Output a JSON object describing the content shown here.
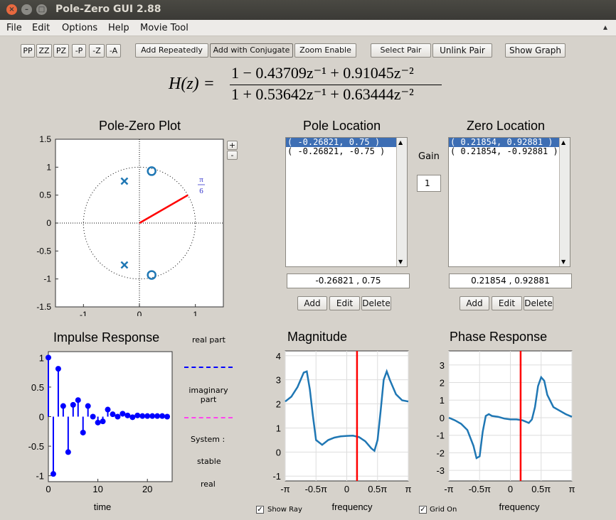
{
  "window": {
    "title": "Pole-Zero GUI 2.88",
    "close_glyph": "×",
    "minimize_glyph": "–",
    "maximize_glyph": "□"
  },
  "menu": [
    "File",
    "Edit",
    "Options",
    "Help",
    "Movie Tool"
  ],
  "toolbar": {
    "small_buttons": [
      "PP",
      "ZZ",
      "PZ",
      "-P",
      "-Z",
      "-A"
    ],
    "add_repeatedly": "Add Repeatedly",
    "add_with_conjugate": "Add with Conjugate",
    "zoom_enable": "Zoom Enable",
    "select_pair": "Select Pair",
    "unlink_pair": "Unlink Pair",
    "show_graph": "Show Graph"
  },
  "transfer_function": {
    "lhs": "H(z) =",
    "numerator": "1 − 0.43709z⁻¹ + 0.91045z⁻²",
    "denominator": "1 + 0.53642z⁻¹ + 0.63444z⁻²"
  },
  "pole_zero_plot": {
    "title": "Pole-Zero Plot",
    "zoom_in": "+",
    "zoom_out": "-",
    "x_ticks": [
      "-1",
      "0",
      "1"
    ],
    "y_ticks": [
      "1.5",
      "1",
      "0.5",
      "0",
      "-0.5",
      "-1",
      "-1.5"
    ],
    "ray_label_num": "π",
    "ray_label_den": "6"
  },
  "pole_location": {
    "title": "Pole Location",
    "items": [
      "( -0.26821, 0.75 )",
      "( -0.26821, -0.75 )"
    ],
    "selected_index": 0,
    "field_value": "-0.26821 , 0.75",
    "add": "Add",
    "edit": "Edit",
    "delete": "Delete"
  },
  "gain": {
    "label": "Gain",
    "value": "1"
  },
  "zero_location": {
    "title": "Zero Location",
    "items": [
      "( 0.21854, 0.92881 )",
      "( 0.21854, -0.92881 )"
    ],
    "selected_index": 0,
    "field_value": "0.21854 , 0.92881",
    "add": "Add",
    "edit": "Edit",
    "delete": "Delete"
  },
  "impulse": {
    "title": "Impulse Response",
    "xlabel": "time",
    "x_ticks": [
      "0",
      "10",
      "20"
    ],
    "y_ticks": [
      "1",
      "0.5",
      "0",
      "-0.5",
      "-1"
    ],
    "legend_real": "real part",
    "legend_imag": "imaginary part",
    "system_label": "System :",
    "stable": "stable",
    "real": "real"
  },
  "magnitude": {
    "title": "Magnitude",
    "xlabel": "frequency",
    "x_ticks": [
      "-π",
      "-0.5π",
      "0",
      "0.5π",
      "π"
    ],
    "y_ticks": [
      "4",
      "3",
      "2",
      "1",
      "0",
      "-1"
    ]
  },
  "phase": {
    "title": "Phase Response",
    "xlabel": "frequency",
    "x_ticks": [
      "-π",
      "-0.5π",
      "0",
      "0.5π",
      "π"
    ],
    "y_ticks": [
      "3",
      "2",
      "1",
      "0",
      "-1",
      "-2",
      "-3"
    ]
  },
  "checkboxes": {
    "show_ray": "Show Ray",
    "grid_on": "Grid On",
    "show_ray_checked": "✓",
    "grid_on_checked": "✓"
  },
  "colors": {
    "accent_blue": "#1f77b4",
    "stem_blue": "#0000ff",
    "ray_red": "#ff0000",
    "imag_magenta": "#ff44ee",
    "selection": "#3d6eb4"
  },
  "chart_data": [
    {
      "type": "scatter",
      "name": "pole-zero",
      "title": "Pole-Zero Plot",
      "poles": [
        [
          -0.26821,
          0.75
        ],
        [
          -0.26821,
          -0.75
        ]
      ],
      "zeros": [
        [
          0.21854,
          0.92881
        ],
        [
          0.21854,
          -0.92881
        ]
      ],
      "xlim": [
        -1.5,
        1.5
      ],
      "ylim": [
        -1.5,
        1.5
      ],
      "ray_angle": "π/6"
    },
    {
      "type": "bar",
      "name": "impulse",
      "title": "Impulse Response",
      "xlabel": "time",
      "x": [
        0,
        1,
        2,
        3,
        4,
        5,
        6,
        7,
        8,
        9,
        10,
        11,
        12,
        13,
        14,
        15,
        16,
        17,
        18,
        19,
        20,
        21,
        22,
        23,
        24
      ],
      "values": [
        1,
        -0.97,
        0.81,
        0.18,
        -0.6,
        0.2,
        0.28,
        -0.27,
        0.18,
        0.0,
        -0.1,
        -0.08,
        0.12,
        0.04,
        0.0,
        0.05,
        0.02,
        -0.01,
        0.02,
        0.01,
        0.01,
        0.01,
        0.01,
        0.01,
        0.0
      ],
      "xlim": [
        0,
        25
      ],
      "ylim": [
        -1.1,
        1.1
      ]
    },
    {
      "type": "line",
      "name": "magnitude",
      "title": "Magnitude",
      "xlabel": "frequency",
      "x": [
        -1,
        -0.9,
        -0.8,
        -0.7,
        -0.65,
        -0.6,
        -0.55,
        -0.5,
        -0.4,
        -0.3,
        -0.2,
        -0.1,
        0,
        0.1,
        0.2,
        0.3,
        0.4,
        0.45,
        0.5,
        0.55,
        0.6,
        0.65,
        0.7,
        0.8,
        0.9,
        1
      ],
      "values": [
        2.1,
        2.3,
        2.7,
        3.3,
        3.35,
        2.6,
        1.5,
        0.5,
        0.3,
        0.5,
        0.6,
        0.65,
        0.67,
        0.68,
        0.62,
        0.45,
        0.15,
        0.05,
        0.5,
        1.7,
        3.0,
        3.35,
        3.0,
        2.4,
        2.15,
        2.1
      ],
      "xlim": [
        -1,
        1
      ],
      "ylim": [
        -1.2,
        4.2
      ],
      "marker_x": 0.1667
    },
    {
      "type": "line",
      "name": "phase",
      "title": "Phase Response",
      "xlabel": "frequency",
      "x": [
        -1,
        -0.9,
        -0.8,
        -0.7,
        -0.6,
        -0.55,
        -0.5,
        -0.45,
        -0.4,
        -0.35,
        -0.3,
        -0.2,
        -0.1,
        0,
        0.1,
        0.2,
        0.3,
        0.35,
        0.4,
        0.45,
        0.5,
        0.55,
        0.6,
        0.7,
        0.8,
        0.9,
        1
      ],
      "values": [
        0,
        -0.15,
        -0.35,
        -0.7,
        -1.6,
        -2.3,
        -2.2,
        -0.8,
        0.1,
        0.2,
        0.1,
        0.05,
        -0.05,
        -0.1,
        -0.1,
        -0.15,
        -0.3,
        -0.1,
        0.6,
        1.8,
        2.3,
        2.1,
        1.3,
        0.6,
        0.4,
        0.2,
        0.05
      ],
      "xlim": [
        -1,
        1
      ],
      "ylim": [
        -3.6,
        3.8
      ],
      "marker_x": 0.1667
    }
  ]
}
